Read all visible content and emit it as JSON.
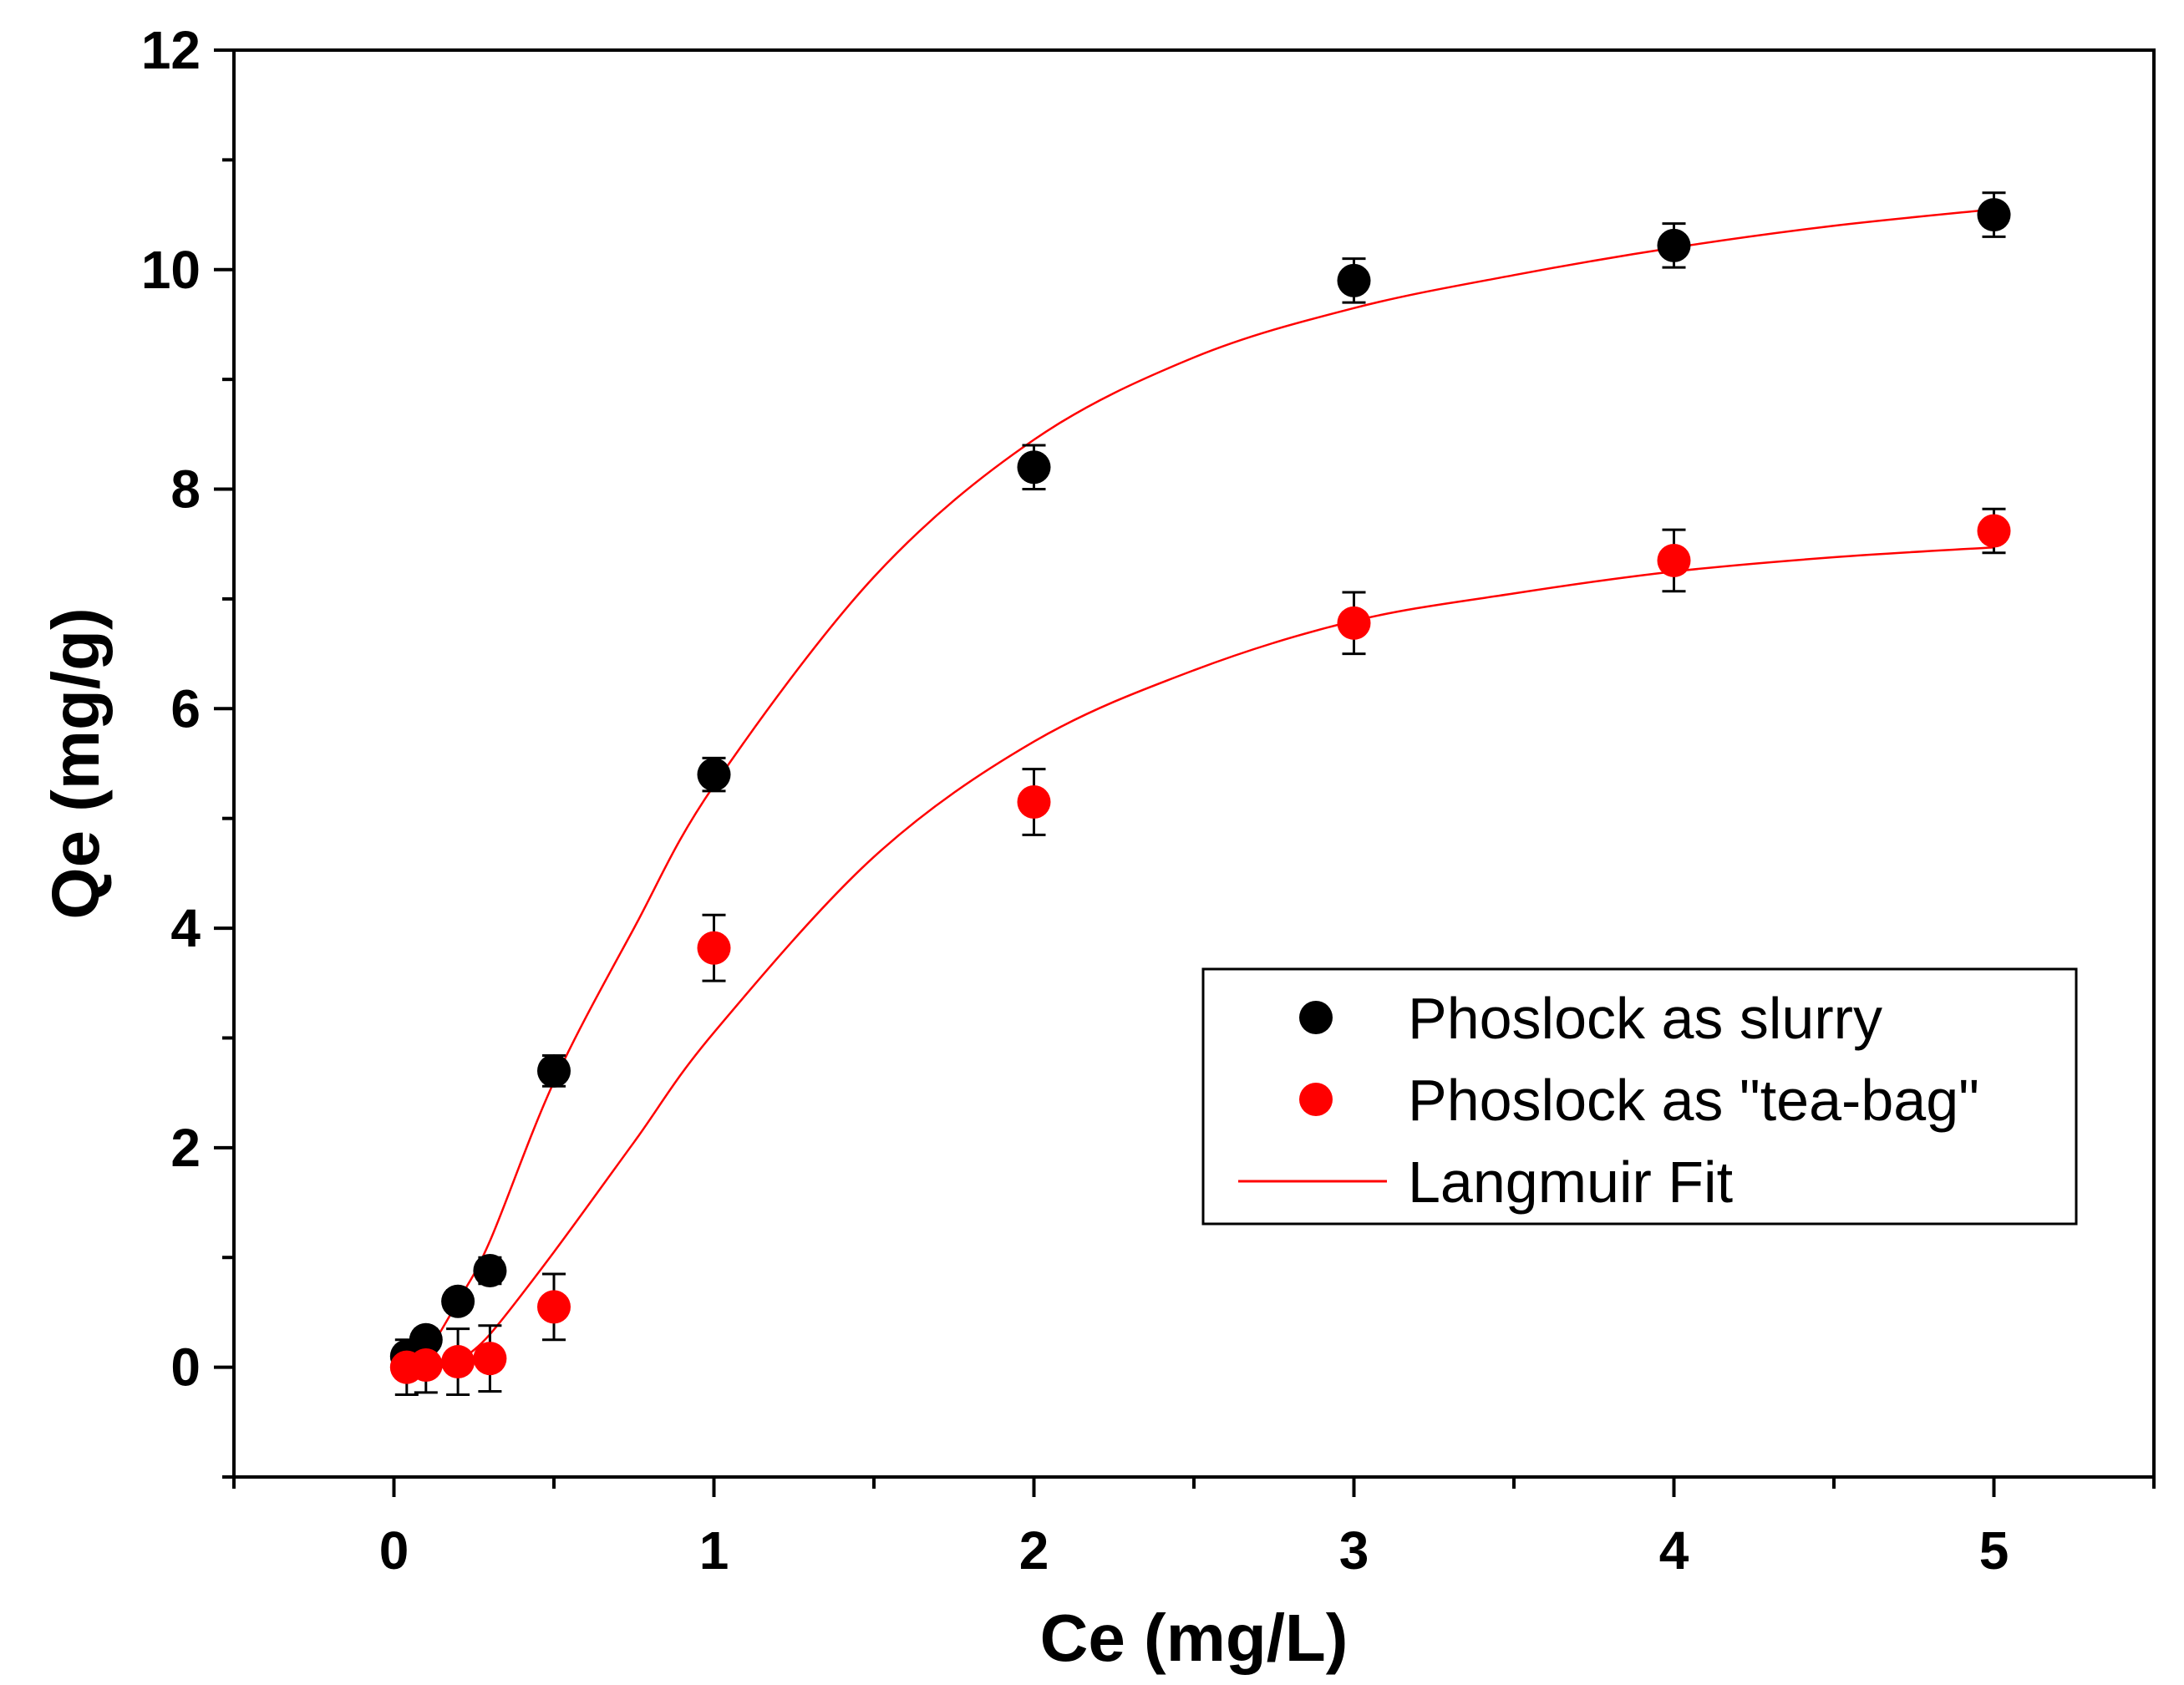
{
  "chart_data": {
    "type": "scatter",
    "title": "",
    "xlabel": "Ce (mg/L)",
    "ylabel": "Qe (mg/g)",
    "xlim": [
      -0.5,
      5.5
    ],
    "ylim": [
      -1,
      12
    ],
    "xticks": [
      0,
      1,
      2,
      3,
      4,
      5
    ],
    "xtick_labels": [
      "0",
      "1",
      "2",
      "3",
      "4",
      "5"
    ],
    "yticks": [
      0,
      2,
      4,
      6,
      8,
      10,
      12
    ],
    "ytick_labels": [
      "0",
      "2",
      "4",
      "6",
      "8",
      "10",
      "12"
    ],
    "grid": false,
    "legend_position": "center-right",
    "series": [
      {
        "name": "Phoslock as slurry",
        "color": "#000000",
        "x": [
          0.04,
          0.1,
          0.2,
          0.3,
          0.5,
          1,
          2,
          3,
          4,
          5
        ],
        "y": [
          0.1,
          0.25,
          0.6,
          0.88,
          2.7,
          5.4,
          8.2,
          9.9,
          10.22,
          10.5
        ],
        "err": [
          0.1,
          0.1,
          0.1,
          0.12,
          0.14,
          0.15,
          0.2,
          0.2,
          0.2,
          0.2
        ]
      },
      {
        "name": "Phoslock as \"tea-bag\"",
        "color": "#ff0000",
        "x": [
          0.04,
          0.1,
          0.2,
          0.3,
          0.5,
          1,
          2,
          3,
          4,
          5
        ],
        "y": [
          0.0,
          0.02,
          0.05,
          0.08,
          0.55,
          3.82,
          5.15,
          6.78,
          7.35,
          7.62
        ],
        "err": [
          0.25,
          0.25,
          0.3,
          0.3,
          0.3,
          0.3,
          0.3,
          0.28,
          0.28,
          0.2
        ]
      }
    ],
    "fit": {
      "name": "Langmuir Fit",
      "color": "#ff0000",
      "curves": [
        {
          "x": [
            0.1,
            0.2,
            0.3,
            0.5,
            0.75,
            1,
            1.5,
            2,
            2.5,
            3,
            3.5,
            4,
            4.5,
            5
          ],
          "y": [
            0.1,
            0.6,
            1.15,
            2.6,
            4.0,
            5.3,
            7.2,
            8.45,
            9.2,
            9.65,
            9.95,
            10.2,
            10.4,
            10.55
          ]
        },
        {
          "x": [
            0.2,
            0.3,
            0.5,
            0.75,
            1,
            1.5,
            2,
            2.5,
            3,
            3.5,
            4,
            4.5,
            5
          ],
          "y": [
            0.05,
            0.3,
            1.05,
            2.05,
            3.05,
            4.65,
            5.7,
            6.35,
            6.8,
            7.05,
            7.25,
            7.38,
            7.47
          ]
        }
      ]
    }
  }
}
